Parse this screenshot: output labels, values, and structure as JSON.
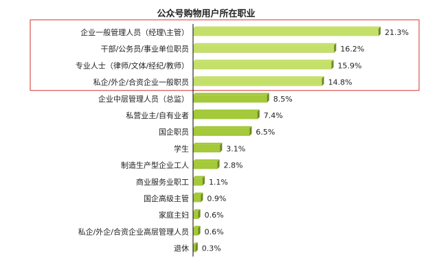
{
  "chart_data": {
    "type": "bar",
    "orientation": "horizontal",
    "title": "公众号购物用户所在职业",
    "categories": [
      "企业一般管理人员（经理\\主管）",
      "干部/公务员/事业单位职员",
      "专业人士（律师/文体/经纪/教师）",
      "私企/外企/合资企业一般职员",
      "企业中层管理人员（总监）",
      "私营业主/自有业者",
      "国企职员",
      "学生",
      "制造生产型企业工人",
      "商业服务业职工",
      "国企高级主管",
      "家庭主妇",
      "私企/外企/合资企业高层管理人员",
      "退休"
    ],
    "values": [
      21.3,
      16.2,
      15.9,
      14.8,
      8.5,
      7.4,
      6.5,
      3.1,
      2.8,
      1.1,
      0.9,
      0.6,
      0.6,
      0.3
    ],
    "value_labels": [
      "21.3%",
      "16.2%",
      "15.9%",
      "14.8%",
      "8.5%",
      "7.4%",
      "6.5%",
      "3.1%",
      "2.8%",
      "1.1%",
      "0.9%",
      "0.6%",
      "0.6%",
      "0.3%"
    ],
    "unit": "%",
    "xlim": [
      0,
      21.3
    ],
    "highlighted_count": 4,
    "grid": false,
    "legend": "none",
    "colors": {
      "bar": "#a4c93a",
      "bar_highlight": "#c5e06a",
      "bar_shadow": "#6e8a22",
      "axis": "#000000",
      "highlight_box": "#d9534f"
    }
  }
}
